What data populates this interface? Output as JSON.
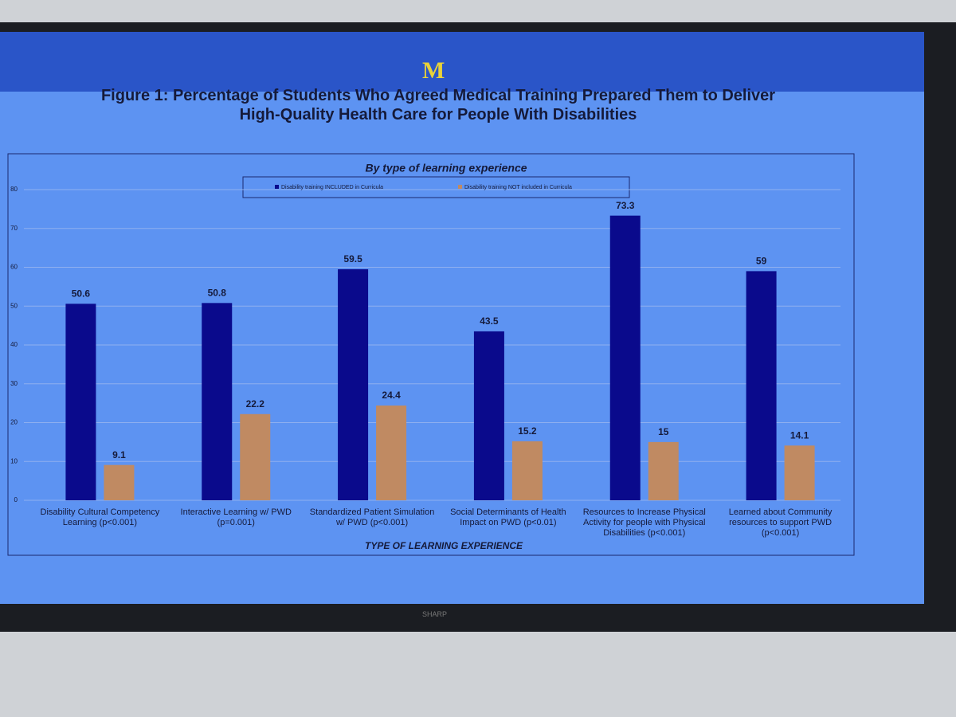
{
  "logo": "M",
  "brand": "SHARP",
  "chart_data": {
    "type": "bar",
    "title": "Figure 1: Percentage of Students Who Agreed Medical Training Prepared Them to Deliver High-Quality Health Care for People With Disabilities",
    "subtitle": "By type of learning experience",
    "x_label": "TYPE OF LEARNING EXPERIENCE",
    "categories": [
      "Disability Cultural Competency Learning (p<0.001)",
      "Interactive Learning w/ PWD (p=0.001)",
      "Standardized Patient Simulation w/ PWD (p<0.001)",
      "Social Determinants of Health Impact on PWD (p<0.01)",
      "Resources to Increase Physical Activity for people with Physical Disabilities (p<0.001)",
      "Learned about Community resources to support PWD (p<0.001)"
    ],
    "series": [
      {
        "name": "Disability training INCLUDED in Curricula",
        "color": "#0a0a8c",
        "values": [
          50.6,
          50.8,
          59.5,
          43.5,
          73.3,
          59
        ]
      },
      {
        "name": "Disability training NOT included in Curricula",
        "color": "#c08a62",
        "values": [
          9.1,
          22.2,
          24.4,
          15.2,
          15,
          14.1
        ]
      }
    ],
    "ylim": [
      0,
      80
    ],
    "yticks": [
      0,
      10,
      20,
      30,
      40,
      50,
      60,
      70,
      80
    ],
    "grid": true,
    "legend": "top"
  }
}
